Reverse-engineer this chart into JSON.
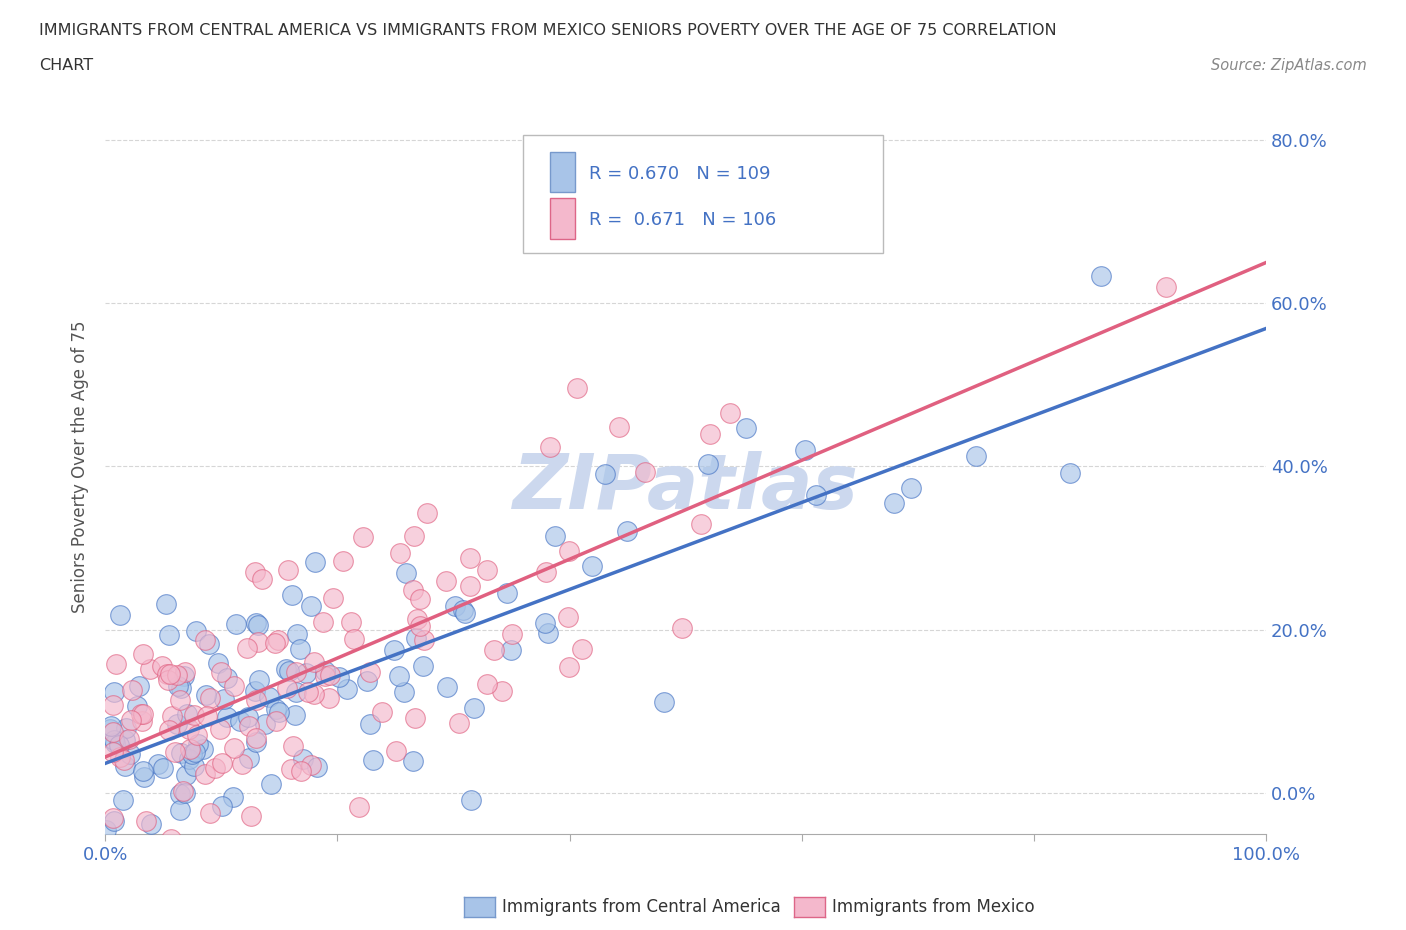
{
  "title_line1": "IMMIGRANTS FROM CENTRAL AMERICA VS IMMIGRANTS FROM MEXICO SENIORS POVERTY OVER THE AGE OF 75 CORRELATION",
  "title_line2": "CHART",
  "source": "Source: ZipAtlas.com",
  "ylabel": "Seniors Poverty Over the Age of 75",
  "series": [
    {
      "name": "Immigrants from Central America",
      "color": "#a8c4e8",
      "line_color": "#4472c4",
      "R": 0.67,
      "N": 109,
      "seed": 10,
      "slope": 0.52,
      "intercept": 3.5,
      "noise": 7.5,
      "x_max": 75
    },
    {
      "name": "Immigrants from Mexico",
      "color": "#f4b8cc",
      "line_color": "#e06080",
      "R": 0.671,
      "N": 106,
      "seed": 20,
      "slope": 0.58,
      "intercept": 4.5,
      "noise": 7.5,
      "x_max": 75
    }
  ],
  "xlim": [
    0,
    100
  ],
  "ylim": [
    -5,
    85
  ],
  "y_plot_min": 0,
  "y_plot_max": 80,
  "ytick_vals": [
    0,
    20,
    40,
    60,
    80
  ],
  "ytick_labels": [
    "0.0%",
    "20.0%",
    "40.0%",
    "60.0%",
    "80.0%"
  ],
  "xtick_vals": [
    0,
    20,
    40,
    60,
    80,
    100
  ],
  "xtick_label_show": {
    "0": "0.0%",
    "100": "100.0%"
  },
  "background_color": "#ffffff",
  "grid_color": "#cccccc",
  "title_color": "#333333",
  "axis_label_color": "#555555",
  "tick_label_color": "#4472c4",
  "watermark_text": "ZIPatlas",
  "watermark_color": "#ccd8ee",
  "legend_R_color": "#4472c4",
  "legend_box_color": "#dddddd"
}
